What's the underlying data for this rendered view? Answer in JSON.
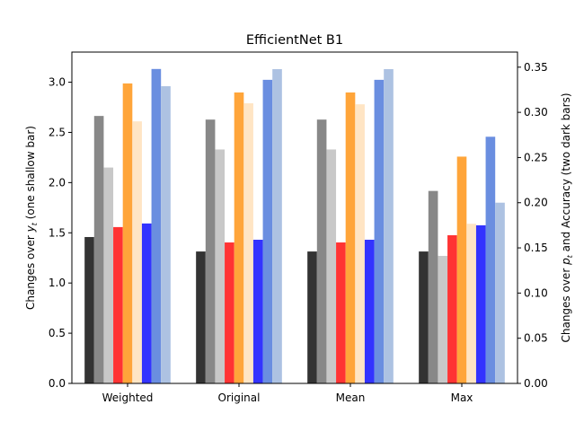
{
  "chart_data": {
    "type": "bar",
    "title": "EfficientNet B1",
    "categories": [
      "Weighted",
      "Original",
      "Mean",
      "Max"
    ],
    "left_axis": {
      "label_prefix": "Changes over ",
      "label_var": "y",
      "label_sub": "t",
      "label_suffix": " (one shallow bar)",
      "ylim": [
        0,
        3.3
      ],
      "ticks": [
        "0.0",
        "0.5",
        "1.0",
        "1.5",
        "2.0",
        "2.5",
        "3.0"
      ]
    },
    "right_axis": {
      "label_prefix": "Changes over ",
      "label_var": "p",
      "label_sub": "t",
      "label_suffix": " and Accuracy (two dark bars)",
      "ylim": [
        0,
        0.3667
      ],
      "ticks": [
        "0.00",
        "0.05",
        "0.10",
        "0.15",
        "0.20",
        "0.25",
        "0.30",
        "0.35"
      ]
    },
    "series": [
      {
        "axis": "right",
        "color": "#333333",
        "values": [
          0.162,
          0.146,
          0.146,
          0.146
        ]
      },
      {
        "axis": "right",
        "color": "#888888",
        "values": [
          0.296,
          0.292,
          0.292,
          0.213
        ]
      },
      {
        "axis": "left",
        "color": "#c8c8c8",
        "values": [
          2.15,
          2.33,
          2.33,
          1.27
        ]
      },
      {
        "axis": "right",
        "color": "#ff3333",
        "values": [
          0.173,
          0.156,
          0.156,
          0.164
        ]
      },
      {
        "axis": "right",
        "color": "#ffa53a",
        "values": [
          0.332,
          0.322,
          0.322,
          0.251
        ]
      },
      {
        "axis": "left",
        "color": "#ffe5c4",
        "values": [
          2.61,
          2.79,
          2.78,
          1.59
        ]
      },
      {
        "axis": "right",
        "color": "#3333ff",
        "values": [
          0.177,
          0.159,
          0.159,
          0.175
        ]
      },
      {
        "axis": "right",
        "color": "#6a8ee0",
        "values": [
          0.348,
          0.336,
          0.336,
          0.273
        ]
      },
      {
        "axis": "left",
        "color": "#adc2e2",
        "values": [
          2.96,
          3.13,
          3.13,
          1.8
        ]
      }
    ]
  }
}
